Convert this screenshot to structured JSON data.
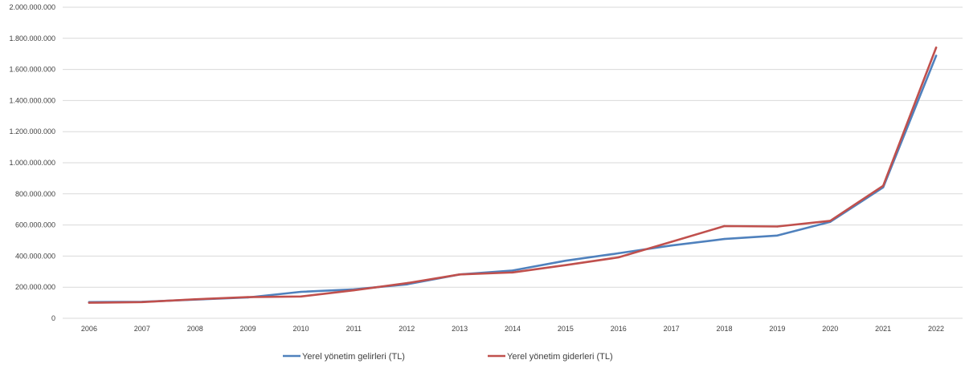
{
  "chart_data": {
    "type": "line",
    "title": "",
    "xlabel": "",
    "ylabel": "",
    "ylim": [
      0,
      2000000000
    ],
    "y_ticks": [
      {
        "value": 0,
        "label": "0"
      },
      {
        "value": 200000000,
        "label": "200.000.000"
      },
      {
        "value": 400000000,
        "label": "400.000.000"
      },
      {
        "value": 600000000,
        "label": "600.000.000"
      },
      {
        "value": 800000000,
        "label": "800.000.000"
      },
      {
        "value": 1000000000,
        "label": "1.000.000.000"
      },
      {
        "value": 1200000000,
        "label": "1.200.000.000"
      },
      {
        "value": 1400000000,
        "label": "1.400.000.000"
      },
      {
        "value": 1600000000,
        "label": "1.600.000.000"
      },
      {
        "value": 1800000000,
        "label": "1.800.000.000"
      },
      {
        "value": 2000000000,
        "label": "2.000.000.000"
      }
    ],
    "categories": [
      "2006",
      "2007",
      "2008",
      "2009",
      "2010",
      "2011",
      "2012",
      "2013",
      "2014",
      "2015",
      "2016",
      "2017",
      "2018",
      "2019",
      "2020",
      "2021",
      "2022"
    ],
    "grid": true,
    "legend_position": "bottom",
    "series": [
      {
        "name": "Yerel yönetim gelirleri (TL)",
        "color": "#4f81bd",
        "values": [
          104000000,
          106000000,
          120000000,
          134000000,
          170000000,
          186000000,
          218000000,
          282000000,
          307000000,
          370000000,
          418000000,
          468000000,
          510000000,
          532000000,
          620000000,
          842000000,
          1688000000
        ]
      },
      {
        "name": "Yerel yönetim giderleri (TL)",
        "color": "#c0504d",
        "values": [
          100000000,
          104000000,
          122000000,
          136000000,
          140000000,
          180000000,
          226000000,
          282000000,
          295000000,
          342000000,
          392000000,
          492000000,
          593000000,
          590000000,
          627000000,
          852000000,
          1740000000
        ]
      }
    ]
  }
}
